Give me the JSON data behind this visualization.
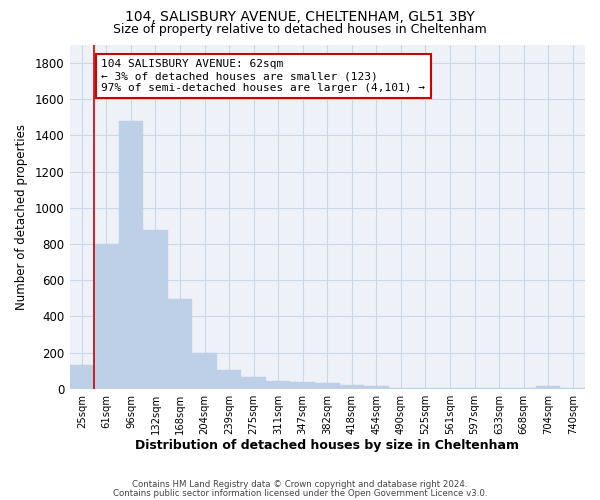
{
  "title1": "104, SALISBURY AVENUE, CHELTENHAM, GL51 3BY",
  "title2": "Size of property relative to detached houses in Cheltenham",
  "xlabel": "Distribution of detached houses by size in Cheltenham",
  "ylabel": "Number of detached properties",
  "categories": [
    "25sqm",
    "61sqm",
    "96sqm",
    "132sqm",
    "168sqm",
    "204sqm",
    "239sqm",
    "275sqm",
    "311sqm",
    "347sqm",
    "382sqm",
    "418sqm",
    "454sqm",
    "490sqm",
    "525sqm",
    "561sqm",
    "597sqm",
    "633sqm",
    "668sqm",
    "704sqm",
    "740sqm"
  ],
  "values": [
    130,
    800,
    1480,
    880,
    495,
    200,
    105,
    65,
    45,
    35,
    30,
    20,
    15,
    5,
    5,
    3,
    2,
    2,
    2,
    15,
    2
  ],
  "bar_color": "#bdd0e8",
  "bar_edge_color": "#bdd0e8",
  "grid_color": "#c8d8ea",
  "vline_color": "#cc0000",
  "annotation_text": "104 SALISBURY AVENUE: 62sqm\n← 3% of detached houses are smaller (123)\n97% of semi-detached houses are larger (4,101) →",
  "annotation_box_color": "#cc0000",
  "footer1": "Contains HM Land Registry data © Crown copyright and database right 2024.",
  "footer2": "Contains public sector information licensed under the Open Government Licence v3.0.",
  "ylim": [
    0,
    1900
  ],
  "yticks": [
    0,
    200,
    400,
    600,
    800,
    1000,
    1200,
    1400,
    1600,
    1800
  ],
  "background_color": "#ffffff",
  "plot_bg_color": "#eef2f8"
}
